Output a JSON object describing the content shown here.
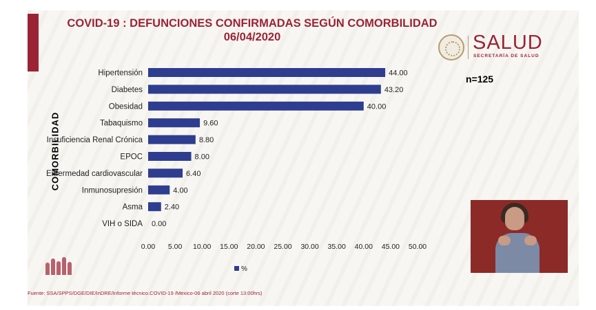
{
  "title": {
    "line1": "COVID-19 : DEFUNCIONES CONFIRMADAS SEGÚN COMORBILIDAD",
    "line2": "06/04/2020"
  },
  "logo": {
    "word": "SALUD",
    "sub": "SECRETARÍA DE SALUD"
  },
  "sample": "n=125",
  "source": "Fuente: SSA/SPPS/DGE/DIE/InDRE/Informe técnico.COVID-19 /Mexico-06 abril 2020 (corte 13:00hrs)",
  "colors": {
    "accent": "#9b2335",
    "bar": "#2e3d8f"
  },
  "chart_data": {
    "type": "bar",
    "orientation": "horizontal",
    "categories": [
      "Hipertensión",
      "Diabetes",
      "Obesidad",
      "Tabaquismo",
      "Insuficiencia Renal Crónica",
      "EPOC",
      "Enfermedad cardiovascular",
      "Inmunosupresión",
      "Asma",
      "VIH o SIDA"
    ],
    "values": [
      44.0,
      43.2,
      40.0,
      9.6,
      8.8,
      8.0,
      6.4,
      4.0,
      2.4,
      0.0
    ],
    "value_labels": [
      "44.00",
      "43.20",
      "40.00",
      "9.60",
      "8.80",
      "8.00",
      "6.40",
      "4.00",
      "2.40",
      "0.00"
    ],
    "ylabel": "COMORBILIDAD",
    "xlim": [
      0,
      50
    ],
    "xticks": [
      "0.00",
      "5.00",
      "10.00",
      "15.00",
      "20.00",
      "25.00",
      "30.00",
      "35.00",
      "40.00",
      "45.00",
      "50.00"
    ],
    "legend": {
      "label": "%",
      "position": "bottom"
    },
    "grid": false
  }
}
